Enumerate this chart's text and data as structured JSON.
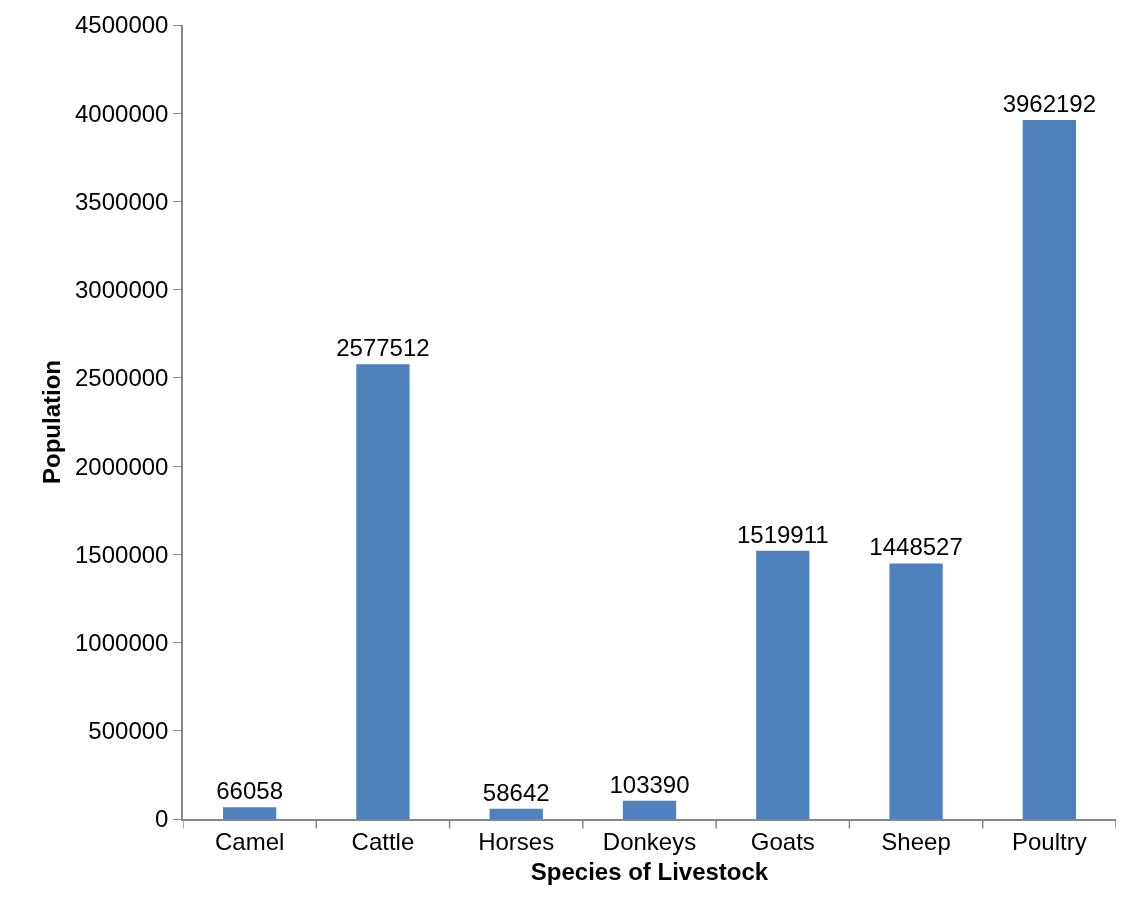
{
  "chart_data": {
    "type": "bar",
    "xlabel": "Species of Livestock",
    "ylabel": "Population",
    "categories": [
      "Camel",
      "Cattle",
      "Horses",
      "Donkeys",
      "Goats",
      "Sheep",
      "Poultry"
    ],
    "values": [
      66058,
      2577512,
      58642,
      103390,
      1519911,
      1448527,
      3962192
    ],
    "color": "#4f81bd",
    "ylim": [
      0,
      4500000
    ],
    "yticks": [
      0,
      500000,
      1000000,
      1500000,
      2000000,
      2500000,
      3000000,
      3500000,
      4000000,
      4500000
    ],
    "data_labels": true
  }
}
